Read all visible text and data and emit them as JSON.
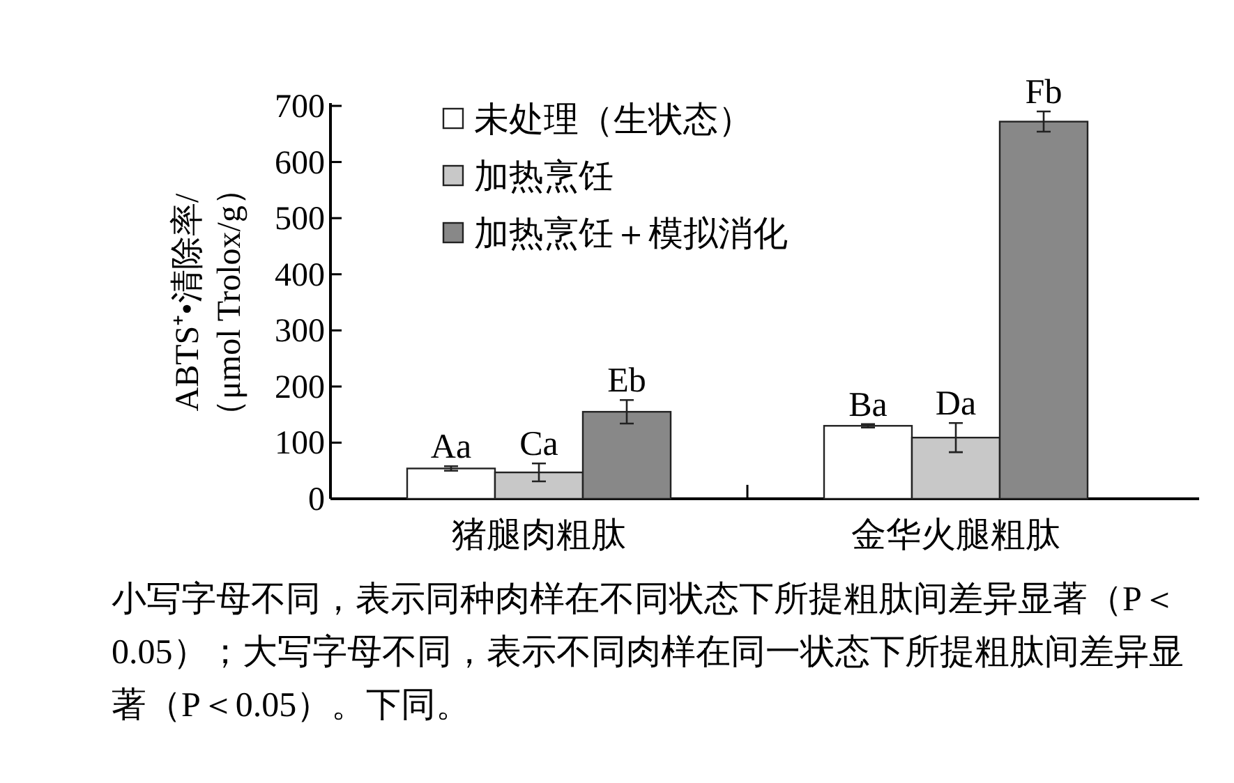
{
  "chart_data": {
    "type": "bar",
    "ylabel": "ABTS⁺•清除率/（μmol Trolox/g）",
    "categories": [
      "猪腿肉粗肽",
      "金华火腿粗肽"
    ],
    "series": [
      {
        "name": "未处理（生状态）",
        "color": "#ffffff",
        "values": [
          54,
          130
        ],
        "errors": [
          4,
          3
        ],
        "value_labels": [
          "Aa",
          "Ba"
        ]
      },
      {
        "name": "加热烹饪",
        "color": "#c8c8c8",
        "values": [
          47,
          109
        ],
        "errors": [
          16,
          26
        ],
        "value_labels": [
          "Ca",
          "Da"
        ]
      },
      {
        "name": "加热烹饪＋模拟消化",
        "color": "#888888",
        "values": [
          155,
          672
        ],
        "errors": [
          21,
          18
        ],
        "value_labels": [
          "Eb",
          "Fb"
        ]
      }
    ],
    "ylim": [
      0,
      700
    ],
    "yticks": [
      0,
      100,
      200,
      300,
      400,
      500,
      600,
      700
    ],
    "legend": "top left",
    "grid": false,
    "annotations": [
      "小写字母不同，表示同种肉样在不同状态下所提粗肽间差异显著（P＜0.05）；大写字母不同，表示不同肉样在同一状态下所提粗肽间差异显著（P＜0.05）。下同。"
    ]
  }
}
